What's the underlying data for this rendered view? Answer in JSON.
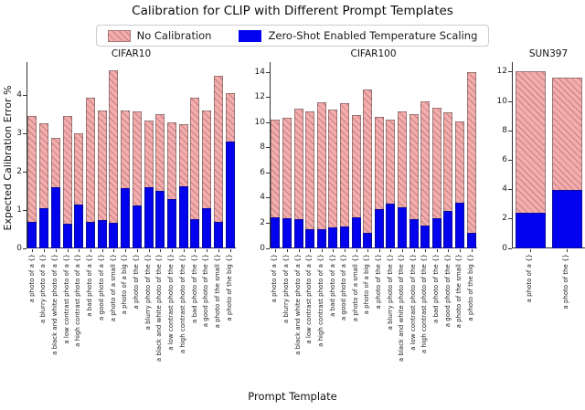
{
  "figure": {
    "title": "Calibration for CLIP with Different Prompt Templates",
    "xlabel": "Prompt Template",
    "ylabel": "Expected Calibration Error %"
  },
  "legend": {
    "position": "top center",
    "items": [
      {
        "label": "No Calibration",
        "swatch": "pink-hatched"
      },
      {
        "label": "Zero-Shot Enabled Temperature Scaling",
        "swatch": "blue-solid"
      }
    ]
  },
  "colors": {
    "no_calibration_fill": "#f5acac",
    "hatch_line": "#966060",
    "temperature_scaling_fill": "#0202ee",
    "axis": "#333333"
  },
  "chart_data": [
    {
      "type": "bar",
      "title": "CIFAR10",
      "grid": false,
      "ylim": [
        0,
        4.87
      ],
      "yticks": [
        0,
        1,
        2,
        3,
        4
      ],
      "categories": [
        "a photo of a {}",
        "a blurry photo of a {}",
        "a black and white photo of a {}",
        "a low contrast photo of a {}",
        "a high contrast photo of a {}",
        "a bad photo of a {}",
        "a good photo of a {}",
        "a photo of a small {}",
        "a photo of a big {}",
        "a photo of the {}",
        "a blurry photo of the {}",
        "a black and white photo of the {}",
        "a low contrast photo of the {}",
        "a high contrast photo of the {}",
        "a bad photo of the {}",
        "a good photo of the {}",
        "a photo of the small {}",
        "a photo of the big {}"
      ],
      "series": [
        {
          "name": "No Calibration",
          "values": [
            3.47,
            3.28,
            2.9,
            3.47,
            3.0,
            3.95,
            3.6,
            4.65,
            3.6,
            3.57,
            3.35,
            3.5,
            3.3,
            3.25,
            3.95,
            3.6,
            4.5,
            4.05
          ]
        },
        {
          "name": "Zero-Shot Enabled Temperature Scaling",
          "values": [
            0.7,
            1.05,
            1.6,
            0.65,
            1.15,
            0.7,
            0.73,
            0.68,
            1.58,
            1.13,
            1.6,
            1.5,
            1.3,
            1.63,
            0.76,
            1.05,
            0.7,
            2.8
          ]
        }
      ]
    },
    {
      "type": "bar",
      "title": "CIFAR100",
      "grid": false,
      "ylim": [
        0,
        14.8
      ],
      "yticks": [
        0,
        2,
        4,
        6,
        8,
        10,
        12,
        14
      ],
      "categories": [
        "a photo of a {}",
        "a blurry photo of a {}",
        "a black and white photo of a {}",
        "a low contrast photo of a {}",
        "a high contrast photo of a {}",
        "a bad photo of a {}",
        "a good photo of a {}",
        "a photo of a small {}",
        "a photo of a big {}",
        "a photo of the {}",
        "a blurry photo of the {}",
        "a black and white photo of the {}",
        "a low contrast photo of the {}",
        "a high contrast photo of the {}",
        "a bad photo of the {}",
        "a good photo of the {}",
        "a photo of the small {}",
        "a photo of the big {}"
      ],
      "series": [
        {
          "name": "No Calibration",
          "values": [
            10.25,
            10.4,
            11.1,
            10.9,
            11.6,
            11.0,
            11.5,
            10.6,
            12.6,
            10.45,
            10.25,
            10.85,
            10.7,
            11.7,
            11.2,
            10.8,
            10.1,
            14.0
          ]
        },
        {
          "name": "Zero-Shot Enabled Temperature Scaling",
          "values": [
            2.5,
            2.4,
            2.3,
            1.5,
            1.55,
            1.7,
            1.75,
            2.5,
            1.2,
            3.1,
            3.55,
            3.3,
            2.35,
            1.85,
            2.4,
            3.0,
            3.65,
            1.2
          ]
        }
      ]
    },
    {
      "type": "bar",
      "title": "SUN397",
      "grid": false,
      "ylim": [
        0,
        12.68
      ],
      "yticks": [
        0,
        2,
        4,
        6,
        8,
        10,
        12
      ],
      "categories": [
        "a photo of a {}",
        "a photo of the {}"
      ],
      "series": [
        {
          "name": "No Calibration",
          "values": [
            12.05,
            11.6
          ]
        },
        {
          "name": "Zero-Shot Enabled Temperature Scaling",
          "values": [
            2.4,
            4.0
          ]
        }
      ]
    }
  ]
}
